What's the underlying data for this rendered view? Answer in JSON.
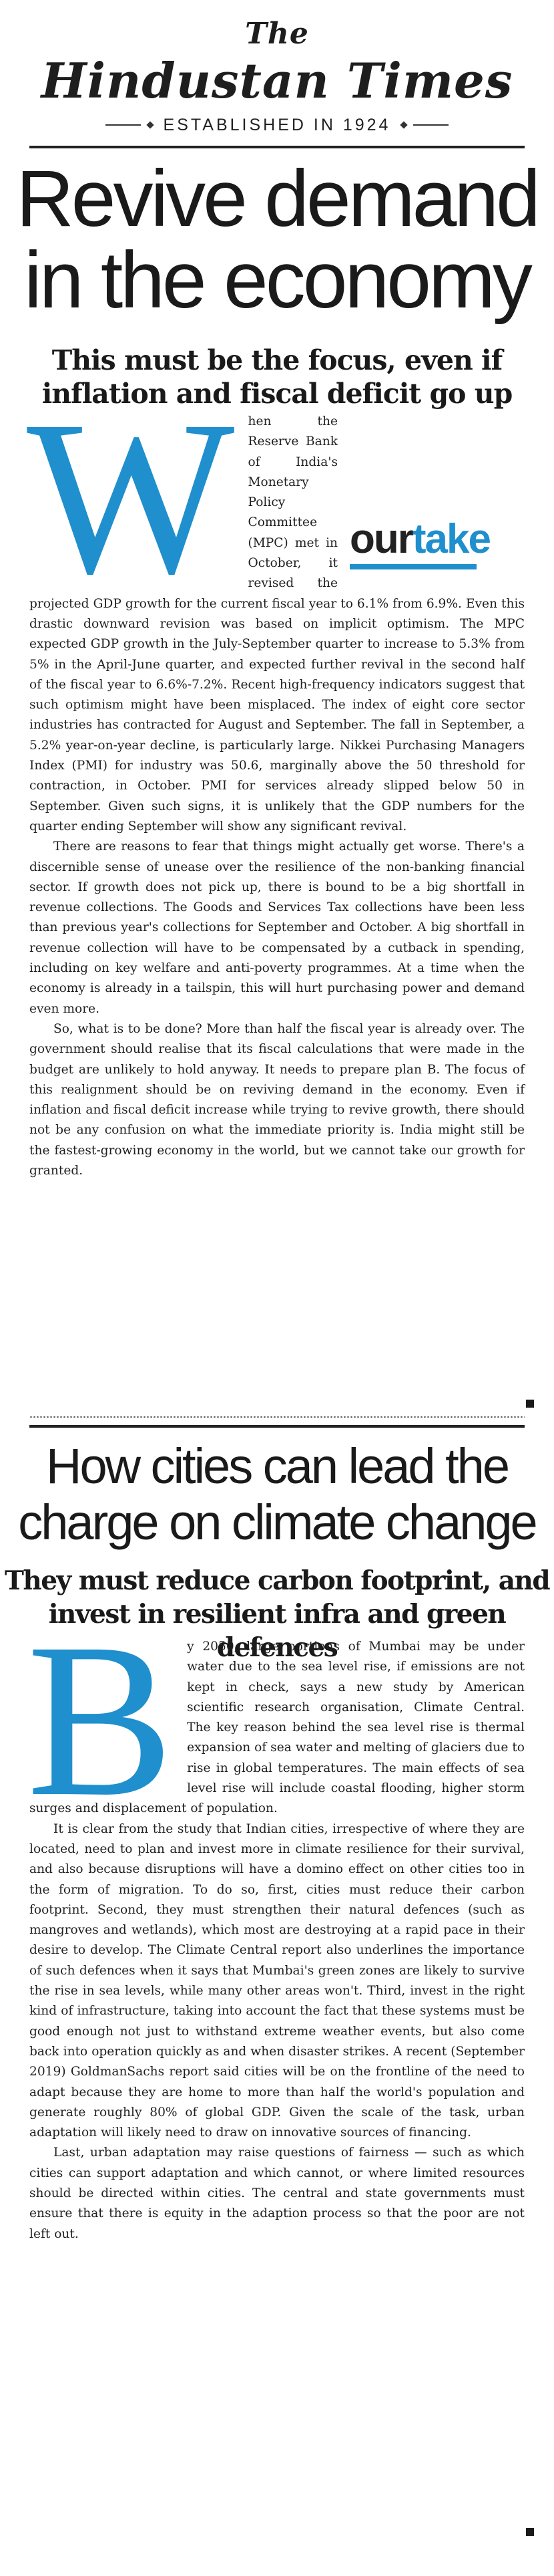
{
  "masthead": {
    "the": "The",
    "name": "Hindustan Times",
    "established": "ESTABLISHED IN 1924"
  },
  "editorial1": {
    "headline": [
      "Revive demand",
      "in the economy"
    ],
    "subhead": [
      "This must be the focus, even if",
      "inflation and fiscal deficit go up"
    ],
    "dropcap": "W",
    "badge": {
      "our": "our",
      "take": "take"
    },
    "para1": "hen the Reserve Bank of India's Monetary Policy Committee (MPC) met in October, it revised the projected GDP growth for the current fiscal year to 6.1% from 6.9%. Even this drastic downward revision was based on implicit optimism. The MPC expected GDP growth in the July-September quarter to increase to 5.3% from 5% in the April-June quarter, and expected further revival in the second half of the fiscal year to 6.6%-7.2%. Recent high-frequency indicators suggest that such optimism might have been misplaced. The index of eight core sector industries has contracted for August and September. The fall in September, a 5.2% year-on-year decline, is particularly large. Nikkei Purchasing Managers Index (PMI) for industry was 50.6, marginally above the 50 threshold for contraction, in October. PMI for services already slipped below 50 in September. Given such signs, it is unlikely that the GDP numbers for the quarter ending September will show any significant revival.",
    "para2": "There are reasons to fear that things might actually get worse. There's a discernible sense of unease over the resilience of the non-banking financial sector. If growth does not pick up, there is bound to be a big shortfall in revenue collections. The Goods and Services Tax collections have been less than previous year's collections for September and October. A big shortfall in revenue collection will have to be compensated by a cutback in spending, including on key welfare and anti-poverty programmes. At a time when the economy is already in a tailspin, this will hurt purchasing power and demand even more.",
    "para3": "So, what is to be done? More than half the fiscal year is already over. The government should realise that its fiscal calculations that were made in the budget are unlikely to hold anyway. It needs to prepare plan B. The focus of this realignment should be on reviving demand in the economy. Even if inflation and fiscal deficit increase while trying to revive growth, there should not be any confusion on what the immediate priority is. India might still be the fastest-growing economy in the world, but we cannot take our growth for granted."
  },
  "editorial2": {
    "headline": [
      "How cities can lead the",
      "charge on climate change"
    ],
    "subhead": [
      "They must reduce carbon footprint, and",
      "invest in resilient infra and green defences"
    ],
    "dropcap": "B",
    "para1": "y 2050, large portions of Mumbai may be under water due to the sea level rise, if emissions are not kept in check, says a new study by American scientific research organisation, Climate Central. The key reason behind the sea level rise is thermal expansion of sea water and melting of glaciers due to rise in global temperatures. The main effects of sea level rise will include coastal flooding, higher storm surges and displacement of population.",
    "para2": "It is clear from the study that Indian cities, irrespective of where they are located, need to plan and invest more in climate resilience for their survival, and also because disruptions will have a domino effect on other cities too in the form of migration. To do so, first, cities must reduce their carbon footprint. Second, they must strengthen their natural defences (such as mangroves and wetlands), which most are destroying at a rapid pace in their desire to develop. The Climate Central report also underlines the importance of such defences when it says that Mumbai's green zones are likely to survive the rise in sea levels, while many other areas won't. Third, invest in the right kind of infrastructure, taking into account the fact that these systems must be good enough not just to withstand extreme weather events, but also come back into operation quickly as and when disaster strikes. A recent (September 2019) GoldmanSachs report said cities will be on the frontline of the need to adapt because they are home to more than half the world's population and generate roughly 80% of global GDP. Given the scale of the task, urban adaptation will likely need to draw on innovative sources of financing.",
    "para3": "Last, urban adaptation may raise questions of fairness — such as which cities can support adaptation and which cannot, or where limited resources should be directed within cities. The central and state governments must ensure that there is equity in the adaption process so that the poor are not left out."
  }
}
